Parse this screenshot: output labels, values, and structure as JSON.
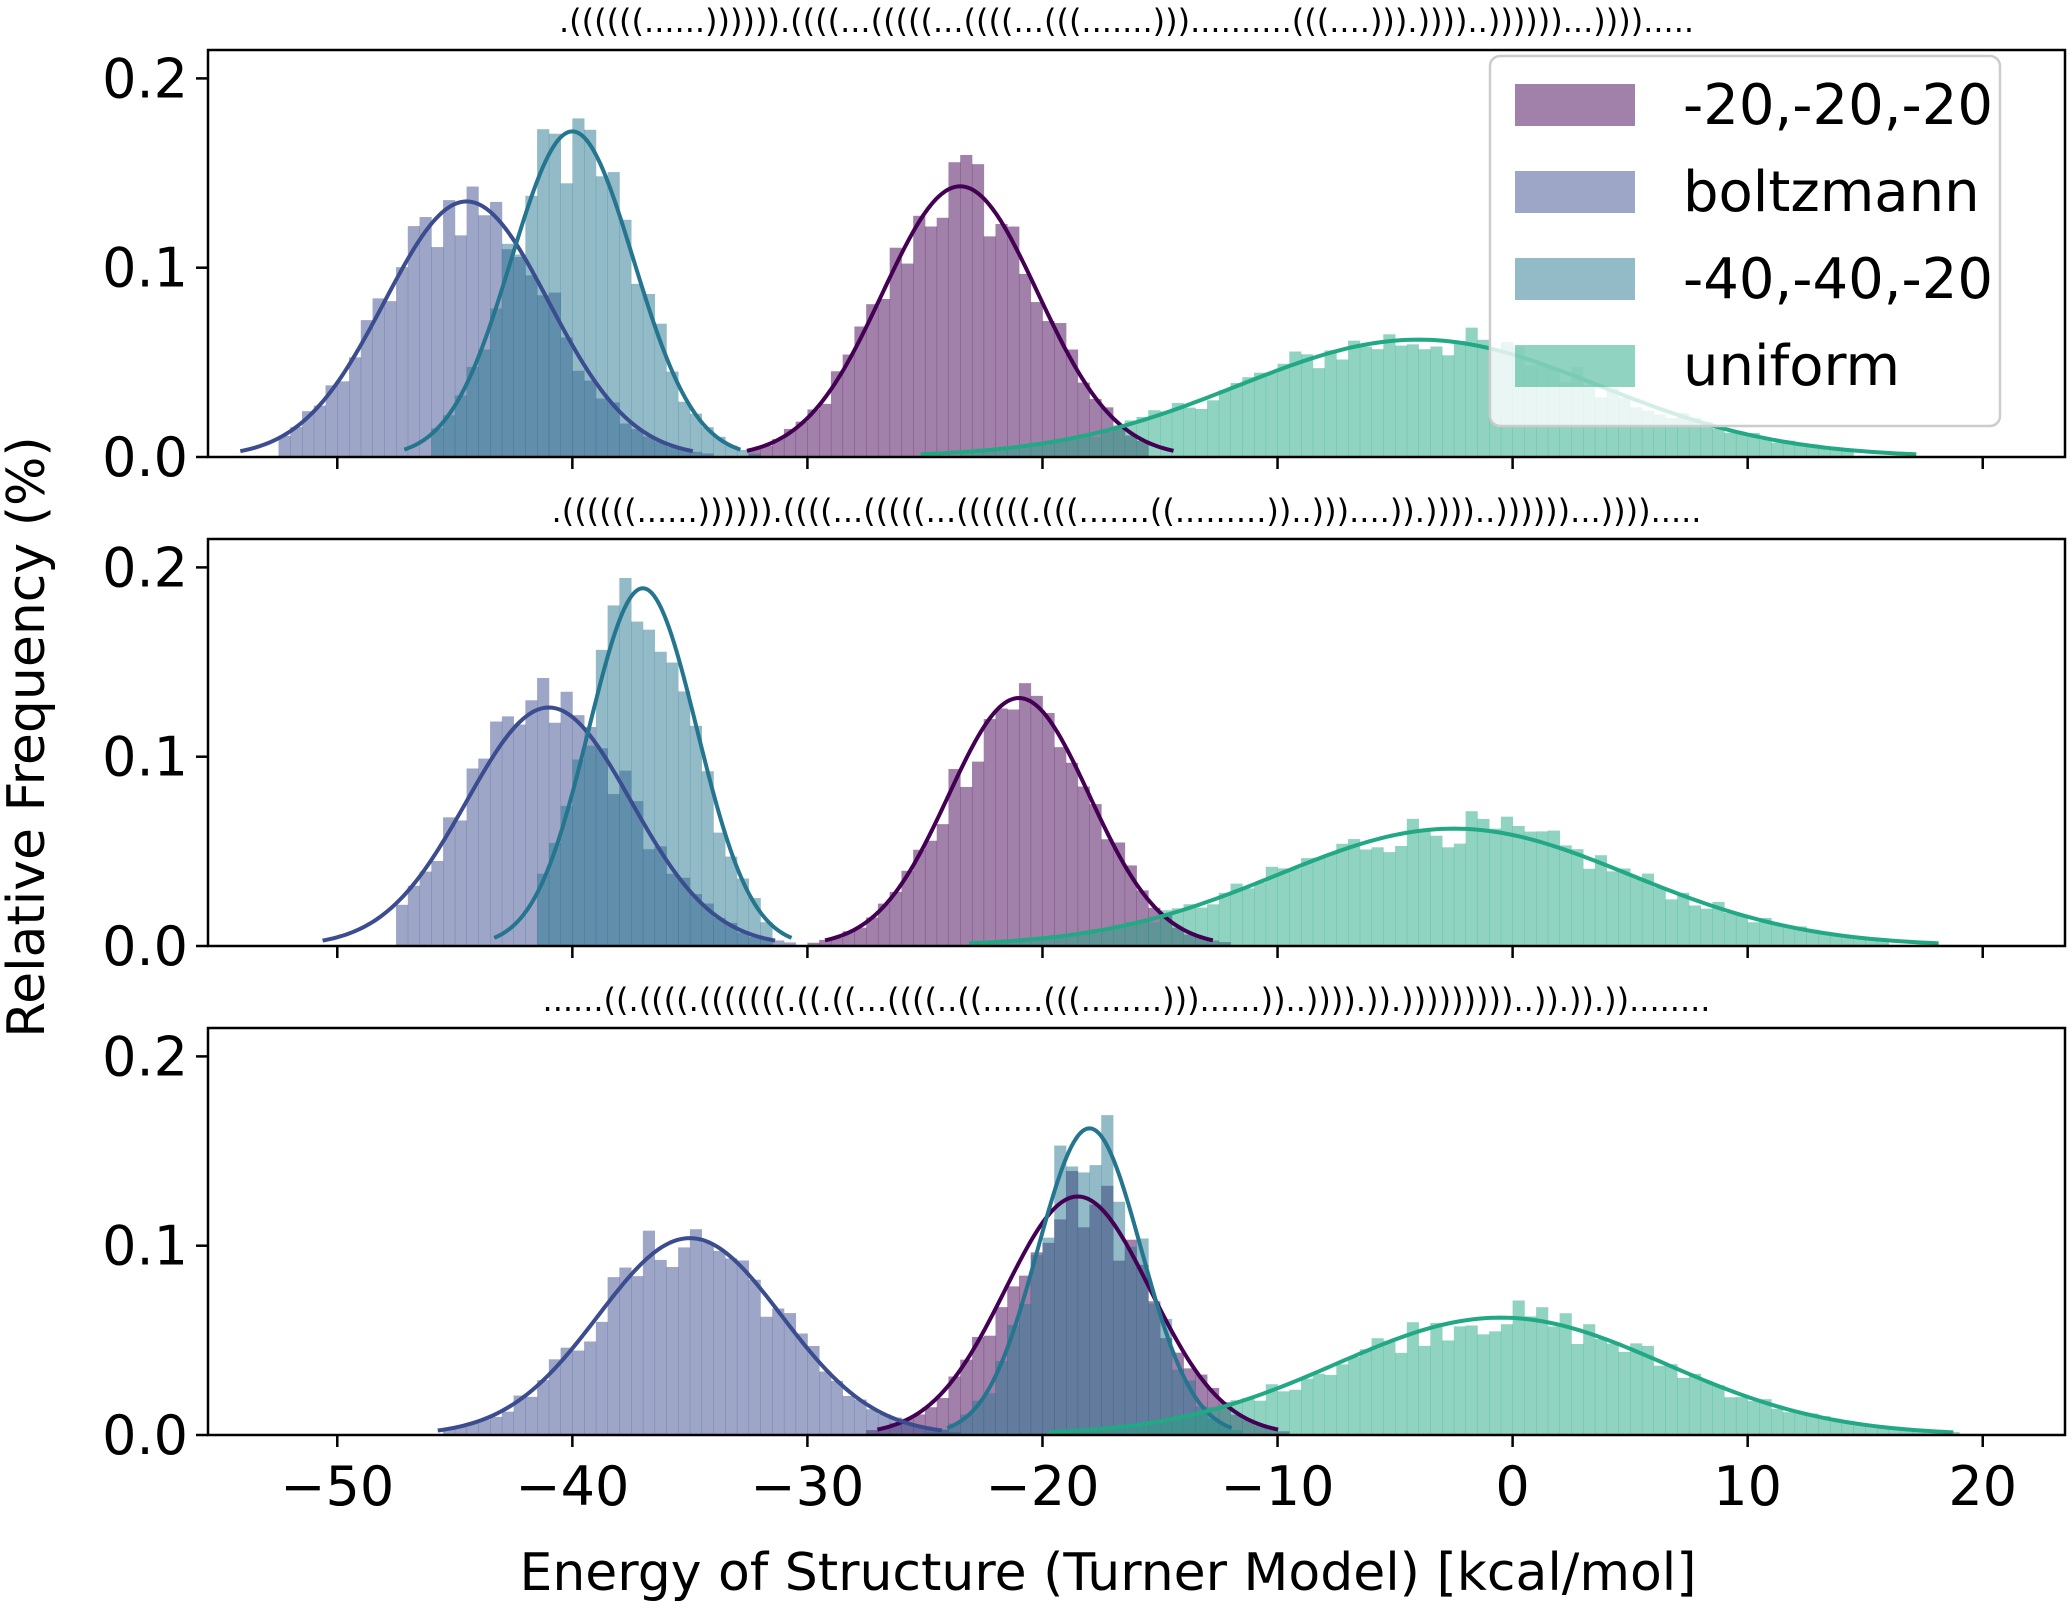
{
  "chart_data": {
    "type": "histogram",
    "xlabel": "Energy of Structure (Turner Model) [kcal/mol]",
    "ylabel": "Relative Frequency (%)",
    "xlim": [
      -55.5,
      23.5
    ],
    "ylim": [
      0,
      0.215
    ],
    "x_ticks": [
      -50,
      -40,
      -30,
      -20,
      -10,
      0,
      10,
      20
    ],
    "x_tick_labels": [
      "−50",
      "−40",
      "−30",
      "−20",
      "−10",
      "0",
      "10",
      "20"
    ],
    "y_ticks": [
      0.0,
      0.1,
      0.2
    ],
    "y_tick_labels": [
      "0.0",
      "0.1",
      "0.2"
    ],
    "grid": false,
    "legend": {
      "position": "top-right",
      "entries": [
        "-20,-20,-20",
        "boltzmann",
        "-40,-40,-20",
        "uniform"
      ]
    },
    "colors": {
      "-20,-20,-20": "#440154",
      "boltzmann": "#3b4d8f",
      "-40,-40,-20": "#26758f",
      "uniform": "#22a884"
    },
    "bar_opacity": 0.5,
    "panels": [
      {
        "title": ".((((((......)))))).((((...(((((...((((...(((.......)))..........(((....))).))))..))))))...)))).....",
        "series": [
          {
            "name": "-20,-20,-20",
            "mean": -23.5,
            "sd": 3.3,
            "peak": 0.143,
            "range": [
              -32.5,
              -15.5
            ]
          },
          {
            "name": "boltzmann",
            "mean": -44.5,
            "sd": 3.5,
            "peak": 0.135,
            "range": [
              -52.5,
              -32
            ]
          },
          {
            "name": "-40,-40,-20",
            "mean": -40.0,
            "sd": 2.6,
            "peak": 0.172,
            "range": [
              -46,
              -32
            ]
          },
          {
            "name": "uniform",
            "mean": -4.0,
            "sd": 7.7,
            "peak": 0.062,
            "range": [
              -23.5,
              14.5
            ]
          }
        ]
      },
      {
        "title": ".((((((......)))))).((((...(((((...((((((.(((.......((.........))..)))....)).))))..))))))...)))).....",
        "series": [
          {
            "name": "-20,-20,-20",
            "mean": -21.0,
            "sd": 3.0,
            "peak": 0.131,
            "range": [
              -30.5,
              -11.5
            ]
          },
          {
            "name": "boltzmann",
            "mean": -41.0,
            "sd": 3.5,
            "peak": 0.126,
            "range": [
              -47.5,
              -29.5
            ]
          },
          {
            "name": "-40,-40,-20",
            "mean": -37.0,
            "sd": 2.3,
            "peak": 0.189,
            "range": [
              -41.5,
              -31.5
            ]
          },
          {
            "name": "uniform",
            "mean": -2.5,
            "sd": 7.5,
            "peak": 0.062,
            "range": [
              -24,
              16
            ]
          }
        ]
      },
      {
        "title": "......((.((((.(((((((.((.((...((((..((......(((........)))......))..)))).)).)))))))))..)).)).))........",
        "series": [
          {
            "name": "-20,-20,-20",
            "mean": -18.5,
            "sd": 3.1,
            "peak": 0.126,
            "range": [
              -27.5,
              -9
            ]
          },
          {
            "name": "boltzmann",
            "mean": -35.0,
            "sd": 3.9,
            "peak": 0.104,
            "range": [
              -45.5,
              -22.5
            ]
          },
          {
            "name": "-40,-40,-20",
            "mean": -18.0,
            "sd": 2.2,
            "peak": 0.162,
            "range": [
              -25,
              -11
            ]
          },
          {
            "name": "uniform",
            "mean": -0.5,
            "sd": 7.0,
            "peak": 0.062,
            "range": [
              -21.5,
              20
            ]
          }
        ]
      }
    ]
  }
}
